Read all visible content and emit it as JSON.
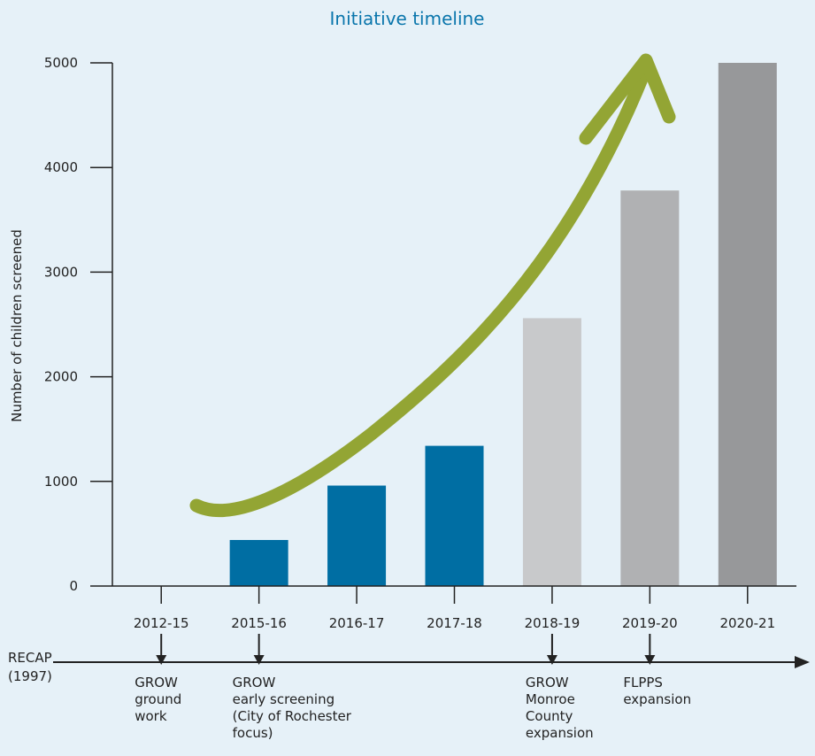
{
  "chart_data": {
    "type": "bar",
    "title": "Initiative timeline",
    "xlabel": "",
    "ylabel": "Number of children screened",
    "ylim": [
      0,
      5000
    ],
    "yticks": [
      0,
      1000,
      2000,
      3000,
      4000,
      5000
    ],
    "categories": [
      "2012-15",
      "2015-16",
      "2016-17",
      "2017-18",
      "2018-19",
      "2019-20",
      "2020-21"
    ],
    "values": [
      0,
      440,
      960,
      1340,
      2560,
      3780,
      5000
    ],
    "bar_colors": [
      "#006ea3",
      "#006ea3",
      "#006ea3",
      "#006ea3",
      "#c8c9cb",
      "#b0b1b3",
      "#97989a"
    ],
    "grid": false,
    "trend_arrow_color": "#93a534",
    "title_color": "#0a76ac"
  },
  "timeline": {
    "start_label_lines": [
      "RECAP",
      "(1997)"
    ],
    "events": [
      {
        "category": "2012-15",
        "lines": [
          "GROW",
          "ground",
          "work"
        ]
      },
      {
        "category": "2015-16",
        "lines": [
          "GROW",
          "early screening",
          "(City of Rochester",
          "focus)"
        ]
      },
      {
        "category": "2018-19",
        "lines": [
          "GROW",
          "Monroe",
          "County",
          "expansion"
        ]
      },
      {
        "category": "2019-20",
        "lines": [
          "FLPPS",
          "expansion"
        ]
      }
    ]
  }
}
